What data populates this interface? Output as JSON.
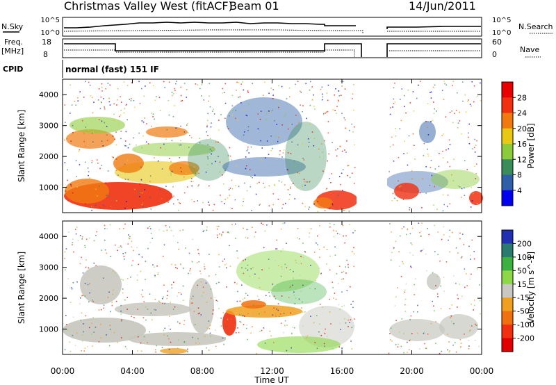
{
  "header": {
    "title": "Christmas Valley West (fitACF)",
    "beam": "Beam 01",
    "date": "14/Jun/2011"
  },
  "top_panels": {
    "nsky_label": "N.Sky",
    "nsearch_label": "N.Search",
    "noise_ticks_left": [
      "10^5",
      "10^0"
    ],
    "noise_ticks_right": [
      "10^5",
      "10^0"
    ],
    "freq_label": "Freq.",
    "freq_unit": "[MHz]",
    "freq_ticks": [
      "18",
      "8"
    ],
    "nave_label": "Nave",
    "nave_ticks": [
      "60",
      "0"
    ],
    "cpid_label": "CPID",
    "cpid_value": "normal (fast) 151 IF"
  },
  "chart_data": [
    {
      "type": "heatmap",
      "quantity": "Power",
      "ylabel": "Slant Range [km]",
      "yticks": [
        "1000",
        "2000",
        "3000",
        "4000"
      ],
      "ylim": [
        180,
        4500
      ],
      "colorbar_label": "Power [dB]",
      "colorbar_ticks": [
        "4",
        "8",
        "12",
        "16",
        "20",
        "24",
        "28"
      ],
      "colorbar_colors": [
        "#0000ee",
        "#2e5fa8",
        "#3a8d5a",
        "#8ccc3c",
        "#e8c814",
        "#f07a10",
        "#f03010",
        "#e80000"
      ],
      "data_gap_ut": [
        17.0,
        18.5
      ]
    },
    {
      "type": "heatmap",
      "quantity": "Velocity",
      "ylabel": "Slant Range [km]",
      "yticks": [
        "1000",
        "2000",
        "3000",
        "4000"
      ],
      "ylim": [
        180,
        4500
      ],
      "colorbar_label": "Velocity [m s^-1]",
      "colorbar_ticks": [
        "200",
        "100",
        "50",
        "15",
        "-15",
        "-50",
        "-100",
        "-200"
      ],
      "colorbar_colors": [
        "#2030b0",
        "#2a7a70",
        "#3cb040",
        "#8cd848",
        "#c8c8c0",
        "#f0a020",
        "#f07010",
        "#f03010",
        "#e00000"
      ],
      "data_gap_ut": [
        17.0,
        18.5
      ]
    }
  ],
  "xaxis": {
    "label": "Time UT",
    "ticks": [
      "00:00",
      "04:00",
      "08:00",
      "12:00",
      "16:00",
      "20:00",
      "00:00"
    ]
  }
}
